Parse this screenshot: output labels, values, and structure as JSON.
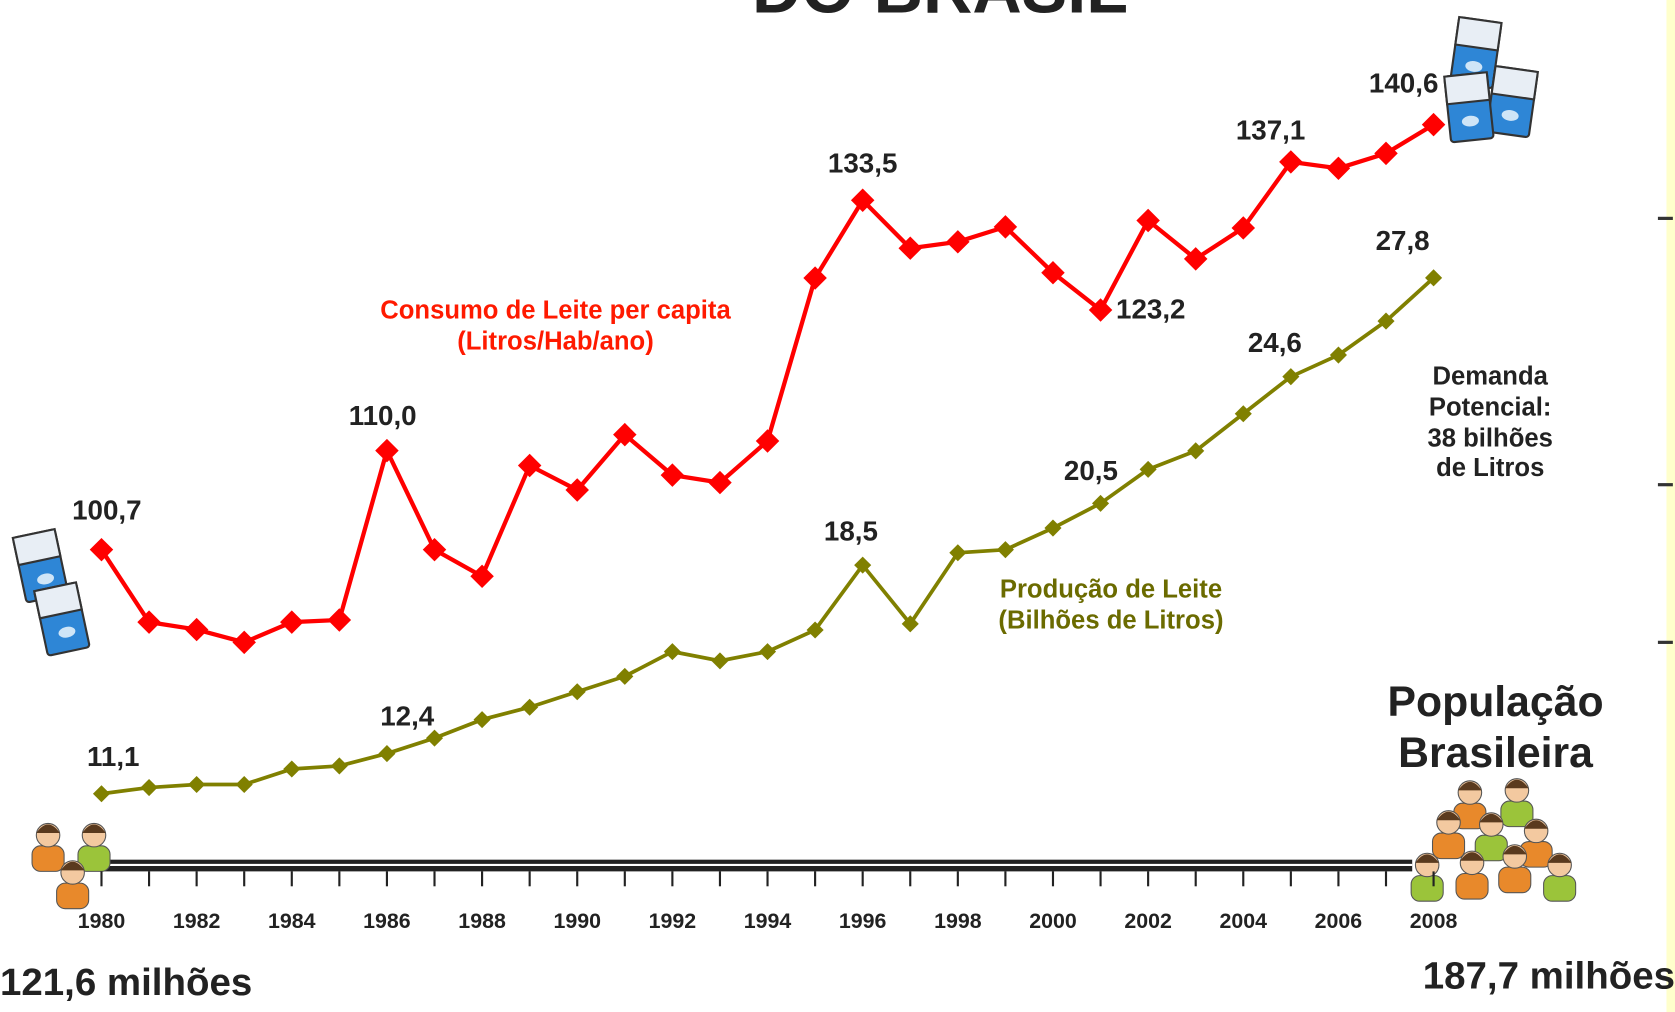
{
  "chart_data": {
    "type": "line",
    "title": "DO BRASIL",
    "x": [
      1980,
      1981,
      1982,
      1983,
      1984,
      1985,
      1986,
      1987,
      1988,
      1989,
      1990,
      1991,
      1992,
      1993,
      1994,
      1995,
      1996,
      1997,
      1998,
      1999,
      2000,
      2001,
      2002,
      2003,
      2004,
      2005,
      2006,
      2007,
      2008
    ],
    "xlim": [
      1980,
      2008
    ],
    "xticks": [
      1980,
      1982,
      1984,
      1986,
      1988,
      1990,
      1992,
      1994,
      1996,
      1998,
      2000,
      2002,
      2004,
      2006,
      2008
    ],
    "series": [
      {
        "name": "Consumo de Leite per capita\n(Litros/Hab/ano)",
        "color": "#ff0000",
        "ylim": [
          90,
          145
        ],
        "values": [
          100.7,
          93.9,
          93.2,
          92.0,
          93.9,
          94.1,
          110.0,
          100.7,
          98.2,
          108.6,
          106.3,
          111.5,
          107.7,
          107.0,
          110.9,
          126.2,
          133.5,
          129.0,
          129.6,
          131.0,
          126.7,
          123.2,
          131.6,
          128.0,
          130.9,
          137.1,
          136.5,
          137.9,
          140.6
        ],
        "value_labels": [
          "100,7",
          null,
          null,
          null,
          null,
          null,
          "110,0",
          null,
          null,
          null,
          null,
          null,
          null,
          null,
          null,
          null,
          "133,5",
          null,
          null,
          null,
          null,
          "123,2",
          null,
          null,
          null,
          "137,1",
          null,
          null,
          "140,6"
        ]
      },
      {
        "name": "Produção de Leite\n(Bilhões de Litros)",
        "color": "#808000",
        "ylim": [
          10,
          30
        ],
        "values": [
          11.1,
          11.3,
          11.4,
          11.4,
          11.9,
          12.0,
          12.4,
          12.9,
          13.5,
          13.9,
          14.4,
          14.9,
          15.7,
          15.4,
          15.7,
          16.4,
          18.5,
          16.6,
          18.9,
          19.0,
          19.7,
          20.5,
          21.6,
          22.2,
          23.4,
          24.6,
          25.3,
          26.4,
          27.8
        ],
        "value_labels": [
          "11,1",
          null,
          null,
          null,
          null,
          null,
          "12,4",
          null,
          null,
          null,
          null,
          null,
          null,
          null,
          null,
          null,
          "18,5",
          null,
          null,
          null,
          null,
          "20,5",
          null,
          null,
          null,
          "24,6",
          null,
          null,
          "27,8"
        ]
      }
    ],
    "annotations": [
      "Demanda\nPotencial:\n38 bilhões\nde Litros",
      "População\nBrasileira",
      "121,6 milhões",
      "187,7 milhões"
    ]
  }
}
